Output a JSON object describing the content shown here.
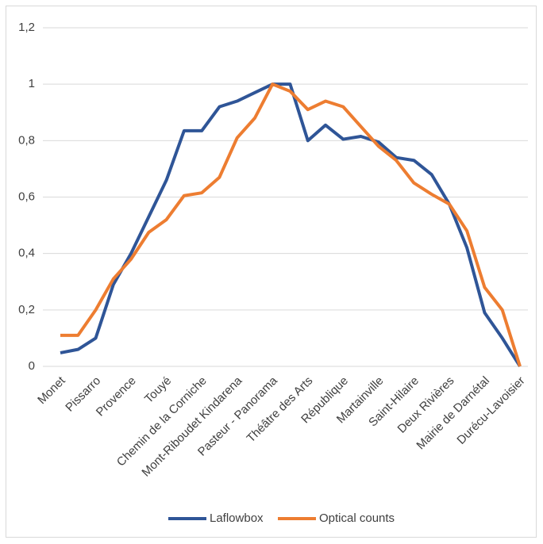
{
  "chart_data": {
    "type": "line",
    "categories": [
      "Monet",
      null,
      "Pissarro",
      null,
      "Provence",
      null,
      "Touyé",
      null,
      "Chemin de la Corniche",
      null,
      "Mont-Riboudet Kindarena",
      null,
      "Pasteur - Panorama",
      null,
      "Théâtre des Arts",
      null,
      "République",
      null,
      "Martainville",
      null,
      "Saint-Hilaire",
      null,
      "Deux Rivières",
      null,
      "Mairie de Darnétal",
      null,
      "Durécu-Lavoisier"
    ],
    "series": [
      {
        "name": "Laflowbox",
        "color": "#2f5597",
        "values": [
          0.048,
          0.06,
          0.1,
          0.29,
          0.4,
          0.53,
          0.66,
          0.835,
          0.835,
          0.92,
          0.94,
          0.97,
          1.0,
          1.0,
          0.8,
          0.855,
          0.805,
          0.815,
          0.795,
          0.74,
          0.73,
          0.68,
          0.575,
          0.42,
          0.19,
          0.1,
          0
        ]
      },
      {
        "name": "Optical counts",
        "color": "#ed7d31",
        "values": [
          0.11,
          0.11,
          0.2,
          0.31,
          0.38,
          0.475,
          0.52,
          0.605,
          0.615,
          0.67,
          0.81,
          0.88,
          1.0,
          0.975,
          0.91,
          0.94,
          0.92,
          0.85,
          0.78,
          0.73,
          0.65,
          0.61,
          0.575,
          0.48,
          0.28,
          0.2,
          0
        ]
      }
    ],
    "ylim": [
      0,
      1.2
    ],
    "yticks": [
      0,
      {
        "value": 0.2,
        "label": "0,2"
      },
      {
        "value": 0.4,
        "label": "0,4"
      },
      {
        "value": 0.6,
        "label": "0,6"
      },
      {
        "value": 0.8,
        "label": "0,8"
      },
      1,
      {
        "value": 1.2,
        "label": "1,2"
      }
    ],
    "grid": true,
    "legend": "bottom"
  }
}
